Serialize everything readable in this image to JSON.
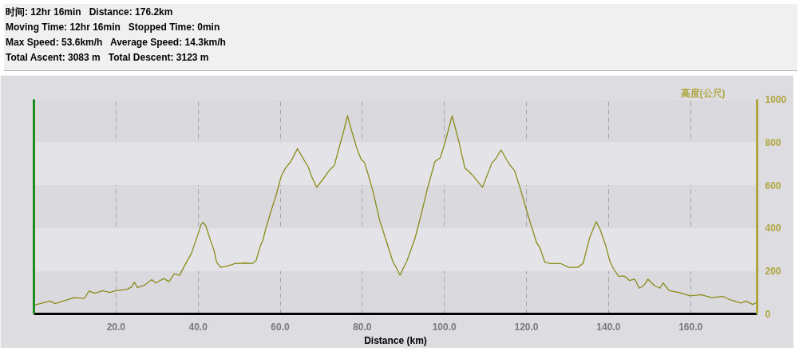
{
  "chart_data": {
    "type": "line",
    "annotations": [
      "时间: 12hr 16min   Distance: 176.2km",
      "Moving Time: 12hr 16min   Stopped Time: 0min",
      "Max Speed: 53.6km/h   Average Speed: 14.3km/h",
      "Total Ascent: 3083 m   Total Descent: 3123 m"
    ],
    "xlabel": "Distance (km)",
    "ylabel": "高度(公尺)",
    "xlim": [
      0,
      176.2
    ],
    "ylim": [
      0,
      1000
    ],
    "xticks": [
      {
        "value": 20,
        "label": "20.0"
      },
      {
        "value": 40,
        "label": "40.0"
      },
      {
        "value": 60,
        "label": "60.0"
      },
      {
        "value": 80,
        "label": "80.0"
      },
      {
        "value": 100,
        "label": "100.0"
      },
      {
        "value": 120,
        "label": "120.0"
      },
      {
        "value": 140,
        "label": "140.0"
      },
      {
        "value": 160,
        "label": "160.0"
      }
    ],
    "yticks": [
      0,
      200,
      400,
      600,
      800,
      1000
    ],
    "grid": true,
    "color": "#8b8b1a",
    "x": [
      0,
      3.9,
      5.2,
      9.7,
      12.3,
      13.4,
      14.9,
      16.8,
      18.4,
      20.0,
      22.6,
      23.8,
      24.5,
      25.2,
      26.8,
      28.7,
      29.7,
      31.6,
      32.9,
      34.2,
      35.5,
      36.5,
      38.4,
      40.0,
      40.7,
      41.2,
      41.9,
      42.9,
      43.9,
      44.5,
      45.5,
      47.1,
      49.0,
      51.6,
      53.2,
      54.1,
      55.2,
      55.8,
      56.4,
      57.7,
      59.0,
      60.3,
      61.3,
      62.6,
      64.2,
      65.1,
      66.8,
      67.7,
      68.9,
      70.6,
      72.2,
      73.2,
      74.2,
      75.5,
      76.4,
      77.4,
      78.7,
      79.7,
      80.6,
      82.6,
      84.2,
      85.8,
      87.4,
      89.2,
      90.9,
      92.9,
      94.5,
      95.8,
      97.7,
      99.0,
      100.0,
      101.9,
      103.5,
      105.0,
      106.7,
      109.3,
      111.6,
      112.5,
      113.8,
      115.8,
      117.1,
      118.7,
      120.6,
      122.5,
      123.3,
      124.5,
      125.8,
      128.3,
      130.3,
      132.5,
      133.8,
      135.4,
      137.0,
      138.0,
      139.3,
      140.3,
      141.2,
      142.5,
      143.8,
      145.1,
      146.4,
      147.5,
      148.6,
      149.6,
      151.2,
      152.5,
      153.3,
      154.8,
      157.4,
      159.9,
      162.5,
      165.1,
      168.0,
      169.6,
      172.2,
      173.5,
      175.1,
      176.2
    ],
    "values": [
      40,
      60,
      48,
      76,
      72,
      106,
      96,
      108,
      100,
      108,
      114,
      126,
      148,
      123,
      132,
      160,
      144,
      165,
      150,
      187,
      180,
      217,
      283,
      373,
      415,
      427,
      409,
      349,
      295,
      241,
      217,
      223,
      235,
      237,
      235,
      247,
      319,
      343,
      391,
      475,
      553,
      644,
      680,
      710,
      770,
      740,
      686,
      638,
      590,
      632,
      674,
      692,
      764,
      854,
      923,
      854,
      770,
      722,
      704,
      572,
      439,
      343,
      247,
      181,
      247,
      355,
      475,
      578,
      710,
      728,
      788,
      923,
      806,
      680,
      650,
      590,
      704,
      722,
      764,
      698,
      668,
      571,
      445,
      331,
      307,
      241,
      235,
      235,
      217,
      217,
      235,
      355,
      430,
      391,
      319,
      247,
      211,
      174,
      177,
      156,
      162,
      120,
      132,
      162,
      132,
      120,
      144,
      108,
      99,
      84,
      90,
      76,
      81,
      66,
      51,
      60,
      44,
      54
    ]
  }
}
